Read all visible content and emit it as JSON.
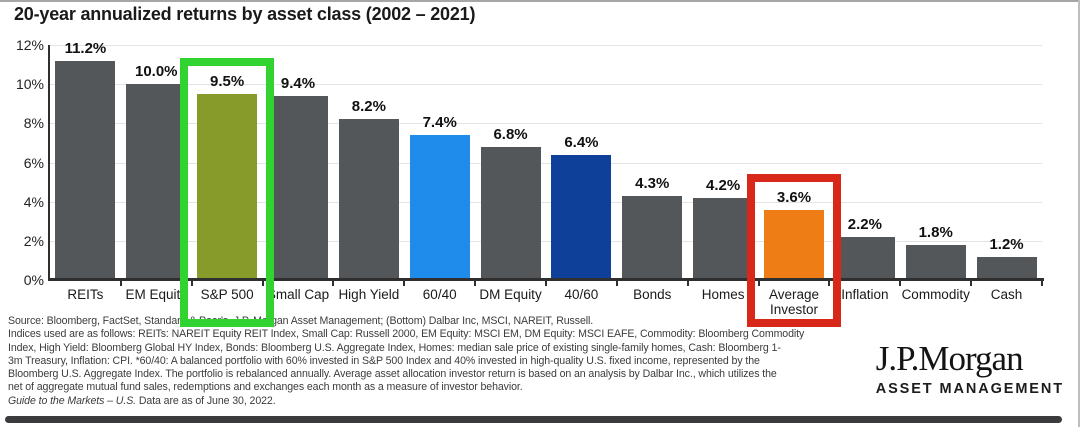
{
  "title": "20-year annualized returns by asset class (2002 – 2021)",
  "chart_data": {
    "type": "bar",
    "title": "20-year annualized returns by asset class (2002 – 2021)",
    "categories": [
      "REITs",
      "EM Equity",
      "S&P 500",
      "Small Cap",
      "High Yield",
      "60/40",
      "DM Equity",
      "40/60",
      "Bonds",
      "Homes",
      "Average Investor",
      "Inflation",
      "Commodity",
      "Cash"
    ],
    "values": [
      11.2,
      10.0,
      9.5,
      9.4,
      8.2,
      7.4,
      6.8,
      6.4,
      4.3,
      4.2,
      3.6,
      2.2,
      1.8,
      1.2
    ],
    "value_labels": [
      "11.2%",
      "10.0%",
      "9.5%",
      "9.4%",
      "8.2%",
      "7.4%",
      "6.8%",
      "6.4%",
      "4.3%",
      "4.2%",
      "3.6%",
      "2.2%",
      "1.8%",
      "1.2%"
    ],
    "xlabel": "",
    "ylabel": "",
    "ylim": [
      0,
      12
    ],
    "yticks": [
      0,
      2,
      4,
      6,
      8,
      10,
      12
    ],
    "ytick_labels": [
      "0%",
      "2%",
      "4%",
      "6%",
      "8%",
      "10%",
      "12%"
    ],
    "grid": true,
    "legend": false,
    "bar_colors": {
      "default": "#54575a",
      "S&P 500": "#879b2b",
      "60/40": "#1f8ceb",
      "40/60": "#0e409a",
      "Average Investor": "#ef7d15"
    },
    "highlights": [
      {
        "category": "S&P 500",
        "color": "#31d331",
        "name": "green-highlight-box"
      },
      {
        "category": "Average Investor",
        "color": "#d8281a",
        "name": "red-highlight-box"
      }
    ]
  },
  "footnote": {
    "lines": [
      "Source: Bloomberg, FactSet, Standard & Poor's, J.P. Morgan Asset Management; (Bottom) Dalbar Inc, MSCI, NAREIT, Russell.",
      "Indices used are as follows: REITs: NAREIT Equity REIT Index, Small Cap: Russell 2000, EM Equity: MSCI EM, DM Equity: MSCI EAFE, Commodity: Bloomberg Commodity",
      "Index, High Yield: Bloomberg Global HY Index, Bonds: Bloomberg U.S. Aggregate Index, Homes: median sale price of existing single-family homes, Cash: Bloomberg 1-",
      "3m Treasury, Inflation: CPI. *60/40: A balanced portfolio with 60% invested in S&P 500 Index and 40% invested in high-quality U.S. fixed income, represented by the",
      "Bloomberg U.S. Aggregate Index. The portfolio is rebalanced annually. Average asset allocation investor return is based on an analysis by Dalbar Inc., which utilizes the",
      "net of aggregate mutual fund sales, redemptions and exchanges each month as a measure of investor behavior."
    ],
    "gtm_italic": "Guide to the Markets – U.S.",
    "gtm_rest": " Data are as of June 30, 2022."
  },
  "logo": {
    "name": "J.P.Morgan",
    "subtitle": "ASSET MANAGEMENT"
  }
}
